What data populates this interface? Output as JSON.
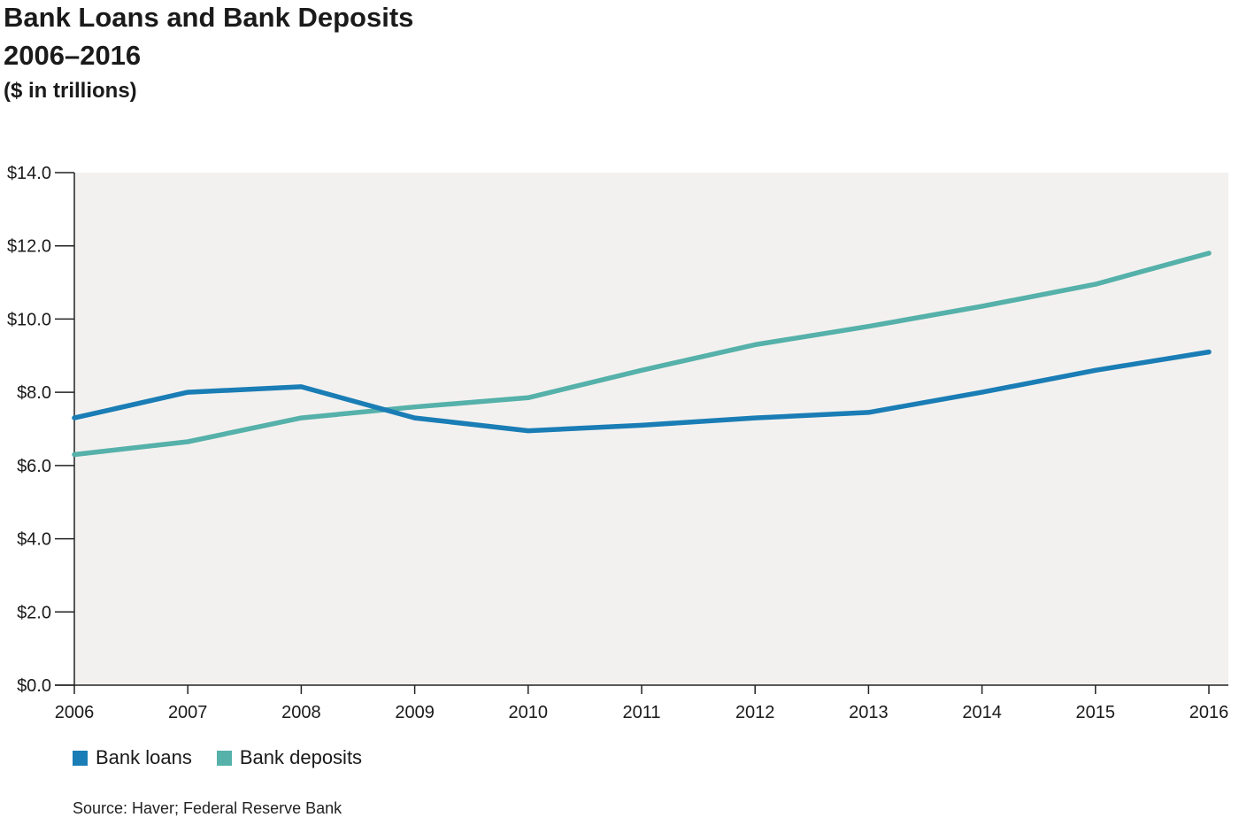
{
  "header": {
    "title_line1": "Bank Loans and Bank Deposits",
    "title_line2": "2006–2016",
    "subtitle": "($ in trillions)"
  },
  "source": "Source: Haver; Federal Reserve Bank",
  "chart_data": {
    "type": "line",
    "title": "Bank Loans and Bank Deposits 2006–2016",
    "subtitle": "($ in trillions)",
    "xlabel": "",
    "ylabel": "",
    "x": [
      "2006",
      "2007",
      "2008",
      "2009",
      "2010",
      "2011",
      "2012",
      "2013",
      "2014",
      "2015",
      "2016"
    ],
    "ylim": [
      0,
      14
    ],
    "yticks": [
      {
        "value": 0,
        "label": "$0.0"
      },
      {
        "value": 2,
        "label": "$2.0"
      },
      {
        "value": 4,
        "label": "$4.0"
      },
      {
        "value": 6,
        "label": "$6.0"
      },
      {
        "value": 8,
        "label": "$8.0"
      },
      {
        "value": 10,
        "label": "$10.0"
      },
      {
        "value": 12,
        "label": "$12.0"
      },
      {
        "value": 14,
        "label": "$14.0"
      }
    ],
    "grid": false,
    "legend_position": "bottom-left",
    "plot_background": "#f3f1ef",
    "series": [
      {
        "name": "Bank loans",
        "color": "#1a7db5",
        "values": [
          7.3,
          8.0,
          8.15,
          7.3,
          6.95,
          7.1,
          7.3,
          7.45,
          8.0,
          8.6,
          9.1
        ]
      },
      {
        "name": "Bank deposits",
        "color": "#55b1aa",
        "values": [
          6.3,
          6.65,
          7.3,
          7.6,
          7.85,
          8.6,
          9.3,
          9.8,
          10.35,
          10.95,
          11.8
        ]
      }
    ]
  }
}
